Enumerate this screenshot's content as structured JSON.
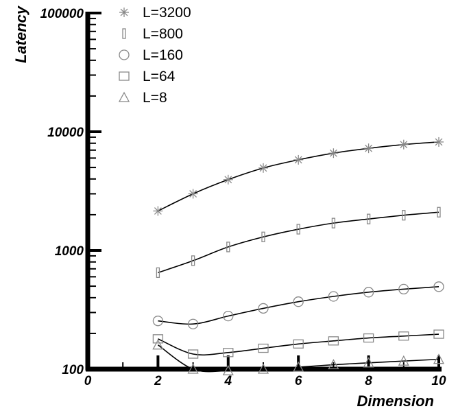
{
  "chart_data": {
    "type": "line",
    "title": "",
    "xlabel": "Dimension",
    "ylabel": "Latency",
    "yscale": "log",
    "xlim": [
      0,
      10
    ],
    "ylim": [
      100,
      100000
    ],
    "xticks": [
      "0",
      "2",
      "4",
      "6",
      "8",
      "10"
    ],
    "yticks": [
      "100",
      "1000",
      "10000",
      "100000"
    ],
    "grid": false,
    "legend_position": "top-left",
    "x": [
      2,
      3,
      4,
      5,
      6,
      7,
      8,
      9,
      10
    ],
    "series": [
      {
        "name": "L=3200",
        "marker": "asterisk",
        "values": [
          2150,
          3000,
          3950,
          4950,
          5800,
          6600,
          7250,
          7800,
          8200
        ]
      },
      {
        "name": "L=800",
        "marker": "bar",
        "values": [
          650,
          820,
          1070,
          1300,
          1510,
          1700,
          1840,
          1980,
          2100
        ]
      },
      {
        "name": "L=160",
        "marker": "circle",
        "values": [
          255,
          240,
          280,
          325,
          370,
          410,
          445,
          472,
          495
        ]
      },
      {
        "name": "L=64",
        "marker": "square",
        "values": [
          180,
          134,
          138,
          150,
          163,
          173,
          183,
          190,
          197
        ]
      },
      {
        "name": "L=8",
        "marker": "triangle",
        "values": [
          160,
          100,
          97,
          100,
          104,
          109,
          113,
          117,
          121
        ]
      }
    ]
  }
}
